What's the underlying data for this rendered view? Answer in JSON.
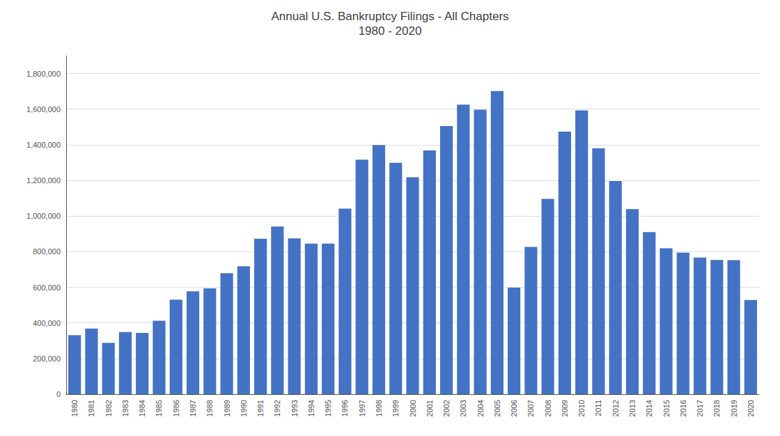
{
  "chart_data": {
    "type": "bar",
    "title": "Annual U.S. Bankruptcy Filings - All Chapters",
    "subtitle": "1980 - 2020",
    "categories": [
      "1980",
      "1981",
      "1982",
      "1983",
      "1984",
      "1985",
      "1986",
      "1987",
      "1988",
      "1989",
      "1990",
      "1991",
      "1992",
      "1993",
      "1994",
      "1995",
      "1996",
      "1997",
      "1998",
      "1999",
      "2000",
      "2001",
      "2002",
      "2003",
      "2004",
      "2005",
      "2006",
      "2007",
      "2008",
      "2009",
      "2010",
      "2011",
      "2012",
      "2013",
      "2014",
      "2015",
      "2016",
      "2017",
      "2018",
      "2019",
      "2020"
    ],
    "values": [
      331264,
      368153,
      288542,
      348521,
      344275,
      412510,
      530438,
      577999,
      594567,
      679461,
      718107,
      872438,
      940858,
      875202,
      845257,
      845257,
      1042109,
      1316999,
      1398182,
      1298900,
      1217972,
      1368128,
      1505306,
      1625208,
      1597462,
      1701966,
      597965,
      826382,
      1096836,
      1473675,
      1593081,
      1380000,
      1195875,
      1038720,
      910000,
      819241,
      794492,
      767721,
      753300,
      752160,
      529068
    ],
    "color": "#4472C4",
    "ylim": [
      0,
      1900000
    ],
    "yticks": [
      0,
      {
        "value": 200000,
        "label": "200,000"
      },
      {
        "value": 400000,
        "label": "400,000"
      },
      {
        "value": 600000,
        "label": "600,000"
      },
      {
        "value": 800000,
        "label": "800,000"
      },
      {
        "value": 1000000,
        "label": "1,000,000"
      },
      {
        "value": 1200000,
        "label": "1,200,000"
      },
      {
        "value": 1400000,
        "label": "1,400,000"
      },
      {
        "value": 1600000,
        "label": "1,600,000"
      },
      {
        "value": 1800000,
        "label": "1,800,000"
      }
    ],
    "grid": true
  }
}
